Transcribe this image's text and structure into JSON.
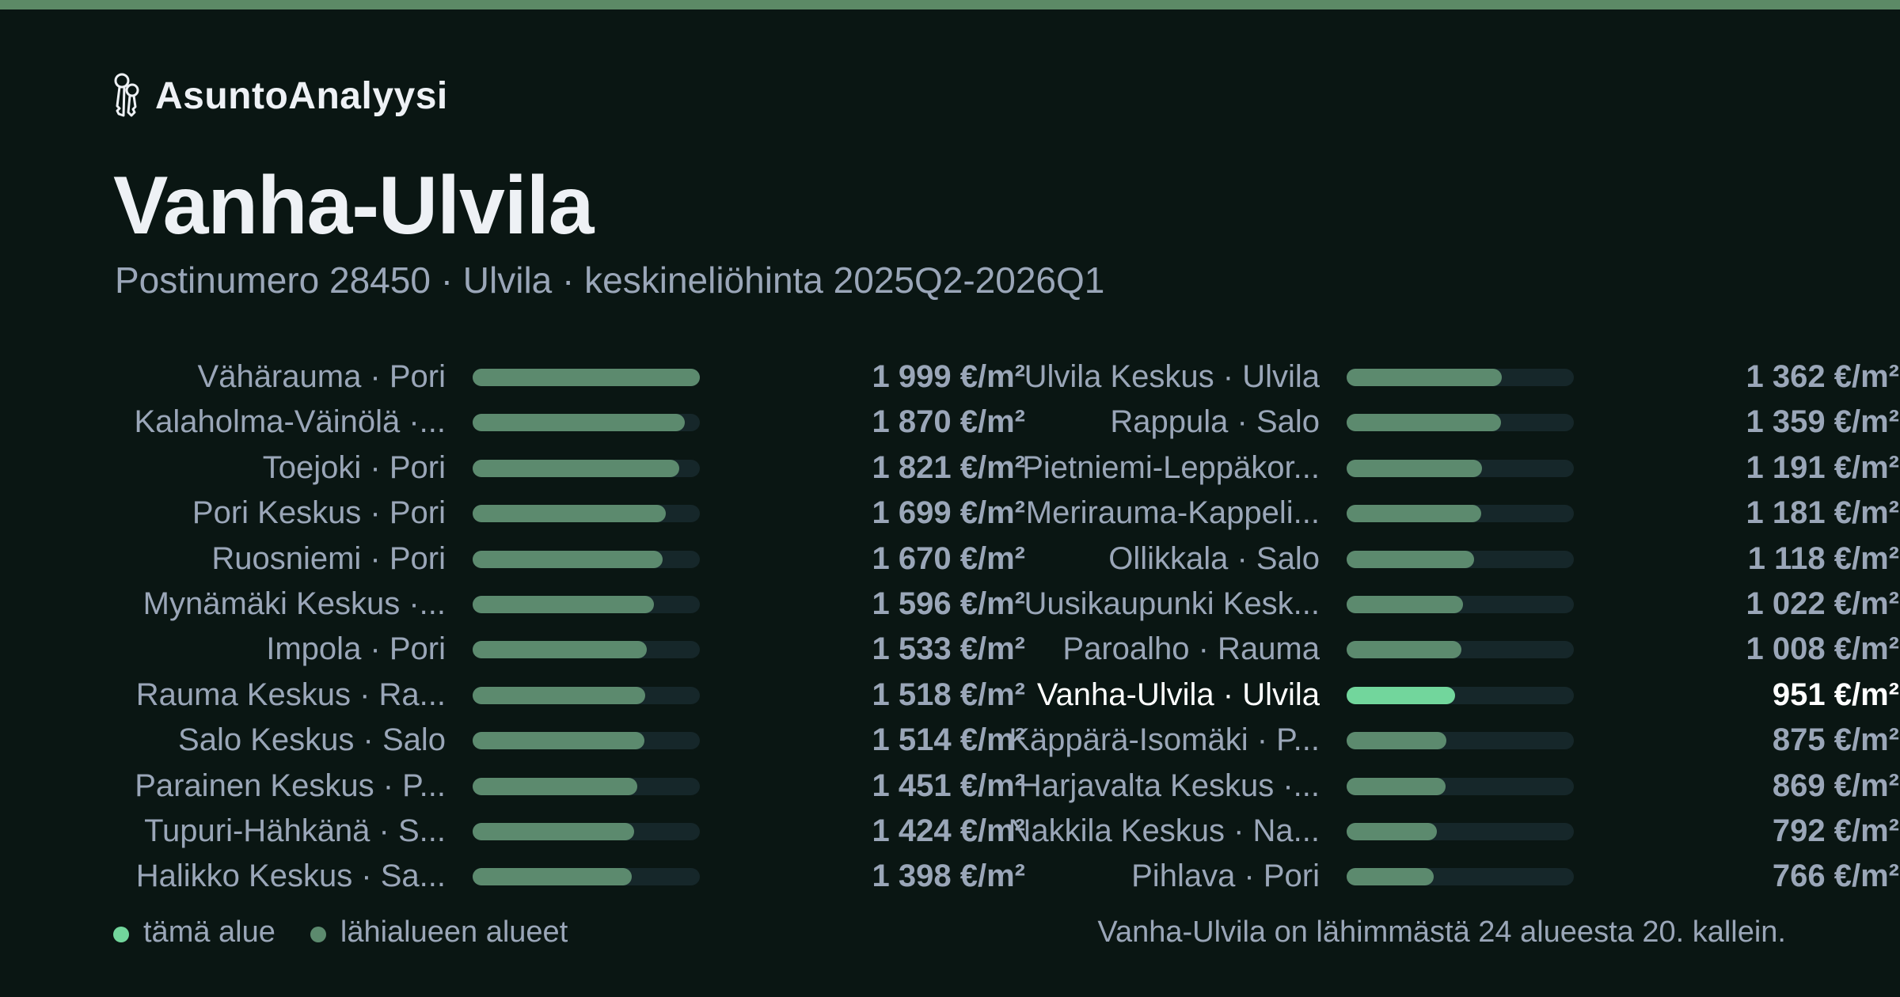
{
  "brand": {
    "name": "AsuntoAnalyysi",
    "logo_icon": "keys-icon"
  },
  "header": {
    "title": "Vanha-Ulvila",
    "subtitle": "Postinumero 28450 · Ulvila · keskineliöhinta 2025Q2-2026Q1"
  },
  "colors": {
    "background": "#0a1613",
    "accent_bar": "#5c8a66",
    "bar_default": "#5c8a6e",
    "bar_highlight": "#72d69c",
    "track": "#16272a",
    "text_muted": "#9aa6b8",
    "text_strong": "#eef1f5"
  },
  "chart_data": {
    "type": "bar",
    "orientation": "horizontal",
    "unit": "€/m²",
    "xlim": [
      0,
      1999
    ],
    "highlight_category": "Vanha-Ulvila · Ulvila",
    "categories": [
      "Vähärauma · Pori",
      "Kalaholma-Väinölä ·...",
      "Toejoki · Pori",
      "Pori Keskus · Pori",
      "Ruosniemi · Pori",
      "Mynämäki Keskus ·...",
      "Impola · Pori",
      "Rauma Keskus · Ra...",
      "Salo Keskus · Salo",
      "Parainen Keskus · P...",
      "Tupuri-Hähkänä · S...",
      "Halikko Keskus · Sa...",
      "Ulvila Keskus · Ulvila",
      "Rappula · Salo",
      "Pietniemi-Leppäkor...",
      "Merirauma-Kappeli...",
      "Ollikkala · Salo",
      "Uusikaupunki Kesk...",
      "Paroalho · Rauma",
      "Vanha-Ulvila · Ulvila",
      "Käppärä-Isomäki · P...",
      "Harjavalta Keskus ·...",
      "Nakkila Keskus · Na...",
      "Pihlava · Pori"
    ],
    "values": [
      1999,
      1870,
      1821,
      1699,
      1670,
      1596,
      1533,
      1518,
      1514,
      1451,
      1424,
      1398,
      1362,
      1359,
      1191,
      1181,
      1118,
      1022,
      1008,
      951,
      875,
      869,
      792,
      766
    ],
    "value_labels": [
      "1 999 €/m²",
      "1 870 €/m²",
      "1 821 €/m²",
      "1 699 €/m²",
      "1 670 €/m²",
      "1 596 €/m²",
      "1 533 €/m²",
      "1 518 €/m²",
      "1 514 €/m²",
      "1 451 €/m²",
      "1 424 €/m²",
      "1 398 €/m²",
      "1 362 €/m²",
      "1 359 €/m²",
      "1 191 €/m²",
      "1 181 €/m²",
      "1 118 €/m²",
      "1 022 €/m²",
      "1 008 €/m²",
      "951 €/m²",
      "875 €/m²",
      "869 €/m²",
      "792 €/m²",
      "766 €/m²"
    ],
    "legend": [
      {
        "label": "tämä alue",
        "color": "#72d69c"
      },
      {
        "label": "lähialueen alueet",
        "color": "#5c8a6e"
      }
    ],
    "legend_position": "bottom-left"
  },
  "footnote": "Vanha-Ulvila on lähimmästä 24 alueesta 20. kallein."
}
